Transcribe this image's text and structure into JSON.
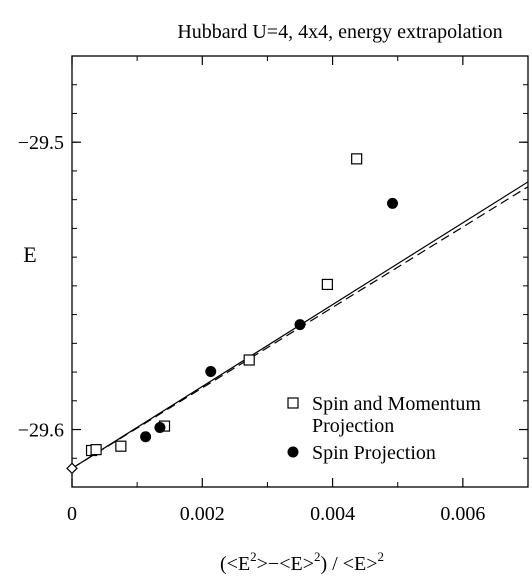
{
  "chart_data": {
    "type": "scatter",
    "title": "Hubbard U=4, 4x4, energy extrapolation",
    "ylabel": "E",
    "xlabel_parts": [
      "(<E",
      "2",
      ">−<E>",
      "2",
      ") / <E>",
      "2"
    ],
    "xlim": [
      0,
      0.007
    ],
    "ylim": [
      -29.62,
      -29.47
    ],
    "x_ticks": [
      {
        "value": 0,
        "label": "0"
      },
      {
        "value": 0.002,
        "label": "0.002"
      },
      {
        "value": 0.004,
        "label": "0.004"
      },
      {
        "value": 0.006,
        "label": "0.006"
      }
    ],
    "y_ticks": [
      {
        "value": -29.5,
        "label": "−29.5"
      },
      {
        "value": -29.6,
        "label": "−29.6"
      }
    ],
    "grid": false,
    "legend_position": "lower-right",
    "series": [
      {
        "name": "Spin and Momentum Projection",
        "legend_lines": [
          "Spin and Momentum",
          "Projection"
        ],
        "marker": "open-square",
        "points": [
          {
            "x": 0.0003,
            "y": -29.6073
          },
          {
            "x": 0.00037,
            "y": -29.607
          },
          {
            "x": 0.00075,
            "y": -29.6058
          },
          {
            "x": 0.00142,
            "y": -29.5988
          },
          {
            "x": 0.00272,
            "y": -29.5758
          },
          {
            "x": 0.00392,
            "y": -29.5495
          },
          {
            "x": 0.00437,
            "y": -29.5058
          }
        ]
      },
      {
        "name": "Spin Projection",
        "legend_lines": [
          "Spin Projection"
        ],
        "marker": "filled-circle",
        "points": [
          {
            "x": 0.00113,
            "y": -29.6025
          },
          {
            "x": 0.00135,
            "y": -29.5993
          },
          {
            "x": 0.00213,
            "y": -29.5798
          },
          {
            "x": 0.0035,
            "y": -29.5635
          },
          {
            "x": 0.00492,
            "y": -29.5213
          }
        ]
      }
    ],
    "extrapolated_point": {
      "x": 0,
      "y": -29.6135,
      "marker": "open-diamond"
    },
    "fit_lines": [
      {
        "style": "solid",
        "x": [
          0,
          0.007
        ],
        "y": [
          -29.6135,
          -29.5138
        ]
      },
      {
        "style": "dashed",
        "x": [
          0,
          0.007
        ],
        "y": [
          -29.6135,
          -29.5155
        ]
      }
    ]
  }
}
